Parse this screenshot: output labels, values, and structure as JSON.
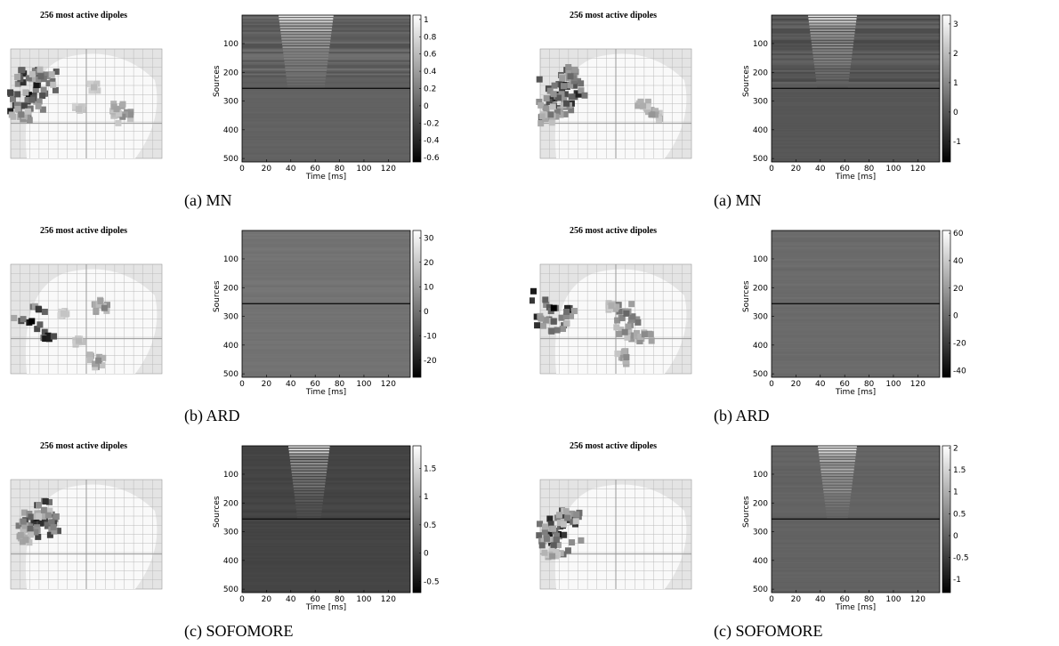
{
  "chart_data": [
    {
      "type": "heatmap",
      "brain_title": "256 most active dipoles",
      "caption": "(a)  MN",
      "ylabel": "Sources",
      "xlabel": "Time [ms]",
      "xticks": [
        0,
        20,
        40,
        60,
        80,
        100,
        120
      ],
      "xlim": [
        0,
        138
      ],
      "yticks": [
        100,
        200,
        300,
        400,
        500
      ],
      "ylim": [
        1,
        512
      ],
      "separator_source": 256,
      "colorbar_ticks": [
        1,
        0.8,
        0.6,
        0.4,
        0.2,
        0,
        -0.2,
        -0.4,
        -0.6
      ],
      "clim": [
        -0.65,
        1.05
      ],
      "colormap": "gray",
      "activity_window_ms": [
        30,
        75
      ],
      "brain_hotspots": [
        {
          "x": 0.12,
          "y": 0.42,
          "v": 0.95
        },
        {
          "x": 0.17,
          "y": 0.33,
          "v": 0.9
        },
        {
          "x": 0.09,
          "y": 0.52,
          "v": 0.7
        },
        {
          "x": 0.2,
          "y": 0.25,
          "v": 0.55
        },
        {
          "x": 0.07,
          "y": 0.6,
          "v": 0.45
        },
        {
          "x": 0.74,
          "y": 0.62,
          "v": 0.4
        },
        {
          "x": 0.7,
          "y": 0.55,
          "v": 0.3
        },
        {
          "x": 0.55,
          "y": 0.35,
          "v": 0.2
        },
        {
          "x": 0.45,
          "y": 0.55,
          "v": 0.18
        }
      ]
    },
    {
      "type": "heatmap",
      "brain_title": "256 most active dipoles",
      "caption": "(a)  MN",
      "ylabel": "Sources",
      "xlabel": "Time [ms]",
      "xticks": [
        0,
        20,
        40,
        60,
        80,
        100,
        120
      ],
      "xlim": [
        0,
        138
      ],
      "yticks": [
        100,
        200,
        300,
        400,
        500
      ],
      "ylim": [
        1,
        512
      ],
      "separator_source": 256,
      "colorbar_ticks": [
        3,
        2,
        1,
        0,
        -1
      ],
      "clim": [
        -1.7,
        3.3
      ],
      "colormap": "gray",
      "activity_window_ms": [
        30,
        70
      ],
      "brain_hotspots": [
        {
          "x": 0.12,
          "y": 0.42,
          "v": 0.95
        },
        {
          "x": 0.17,
          "y": 0.33,
          "v": 0.9
        },
        {
          "x": 0.09,
          "y": 0.52,
          "v": 0.75
        },
        {
          "x": 0.2,
          "y": 0.25,
          "v": 0.55
        },
        {
          "x": 0.07,
          "y": 0.6,
          "v": 0.5
        },
        {
          "x": 0.74,
          "y": 0.6,
          "v": 0.35
        },
        {
          "x": 0.68,
          "y": 0.52,
          "v": 0.25
        }
      ]
    },
    {
      "type": "heatmap",
      "brain_title": "256 most active dipoles",
      "caption": "(b)  ARD",
      "ylabel": "Sources",
      "xlabel": "Time [ms]",
      "xticks": [
        0,
        20,
        40,
        60,
        80,
        100,
        120
      ],
      "xlim": [
        0,
        138
      ],
      "yticks": [
        100,
        200,
        300,
        400,
        500
      ],
      "ylim": [
        1,
        512
      ],
      "separator_source": 256,
      "colorbar_ticks": [
        30,
        20,
        10,
        0,
        -10,
        -20
      ],
      "clim": [
        -27,
        33
      ],
      "colormap": "gray",
      "activity_window_ms": [],
      "brain_hotspots": [
        {
          "x": 0.14,
          "y": 0.52,
          "v": 1.0
        },
        {
          "x": 0.62,
          "y": 0.4,
          "v": 0.45
        },
        {
          "x": 0.58,
          "y": 0.88,
          "v": 0.4
        },
        {
          "x": 0.45,
          "y": 0.7,
          "v": 0.2
        },
        {
          "x": 0.35,
          "y": 0.45,
          "v": 0.15
        }
      ]
    },
    {
      "type": "heatmap",
      "brain_title": "256 most active dipoles",
      "caption": "(b)  ARD",
      "ylabel": "Sources",
      "xlabel": "Time [ms]",
      "xticks": [
        0,
        20,
        40,
        60,
        80,
        100,
        120
      ],
      "xlim": [
        0,
        138
      ],
      "yticks": [
        100,
        200,
        300,
        400,
        500
      ],
      "ylim": [
        1,
        512
      ],
      "separator_source": 256,
      "colorbar_ticks": [
        60,
        40,
        20,
        0,
        -20,
        -40
      ],
      "clim": [
        -45,
        62
      ],
      "colormap": "gray",
      "activity_window_ms": [],
      "brain_hotspots": [
        {
          "x": 0.09,
          "y": 0.4,
          "v": 1.0
        },
        {
          "x": 0.09,
          "y": 0.52,
          "v": 0.6
        },
        {
          "x": 0.57,
          "y": 0.45,
          "v": 0.55
        },
        {
          "x": 0.56,
          "y": 0.62,
          "v": 0.45
        },
        {
          "x": 0.69,
          "y": 0.64,
          "v": 0.4
        },
        {
          "x": 0.57,
          "y": 0.85,
          "v": 0.4
        },
        {
          "x": 0.47,
          "y": 0.38,
          "v": 0.25
        }
      ]
    },
    {
      "type": "heatmap",
      "brain_title": "256 most active dipoles",
      "caption": "(c)  SOFOMORE",
      "ylabel": "Sources",
      "xlabel": "Time [ms]",
      "xticks": [
        0,
        20,
        40,
        60,
        80,
        100,
        120
      ],
      "xlim": [
        0,
        138
      ],
      "yticks": [
        100,
        200,
        300,
        400,
        500
      ],
      "ylim": [
        1,
        512
      ],
      "separator_source": 256,
      "colorbar_ticks": [
        1.5,
        1,
        0.5,
        0,
        -0.5
      ],
      "clim": [
        -0.7,
        1.9
      ],
      "colormap": "gray",
      "activity_window_ms": [
        38,
        72
      ],
      "brain_hotspots": [
        {
          "x": 0.17,
          "y": 0.35,
          "v": 0.95
        },
        {
          "x": 0.2,
          "y": 0.4,
          "v": 0.8
        },
        {
          "x": 0.13,
          "y": 0.45,
          "v": 0.55
        },
        {
          "x": 0.22,
          "y": 0.28,
          "v": 0.4
        },
        {
          "x": 0.1,
          "y": 0.55,
          "v": 0.3
        }
      ]
    },
    {
      "type": "heatmap",
      "brain_title": "256 most active dipoles",
      "caption": "(c)  SOFOMORE",
      "ylabel": "Sources",
      "xlabel": "Time [ms]",
      "xticks": [
        0,
        20,
        40,
        60,
        80,
        100,
        120
      ],
      "xlim": [
        0,
        138
      ],
      "yticks": [
        100,
        200,
        300,
        400,
        500
      ],
      "ylim": [
        1,
        512
      ],
      "separator_source": 256,
      "colorbar_ticks": [
        2,
        1.5,
        1,
        0.5,
        0,
        -0.5,
        -1
      ],
      "clim": [
        -1.3,
        2.05
      ],
      "colormap": "gray",
      "activity_window_ms": [
        38,
        70
      ],
      "brain_hotspots": [
        {
          "x": 0.12,
          "y": 0.5,
          "v": 0.95
        },
        {
          "x": 0.15,
          "y": 0.42,
          "v": 0.85
        },
        {
          "x": 0.09,
          "y": 0.6,
          "v": 0.6
        },
        {
          "x": 0.18,
          "y": 0.35,
          "v": 0.45
        },
        {
          "x": 0.08,
          "y": 0.7,
          "v": 0.35
        }
      ]
    }
  ]
}
